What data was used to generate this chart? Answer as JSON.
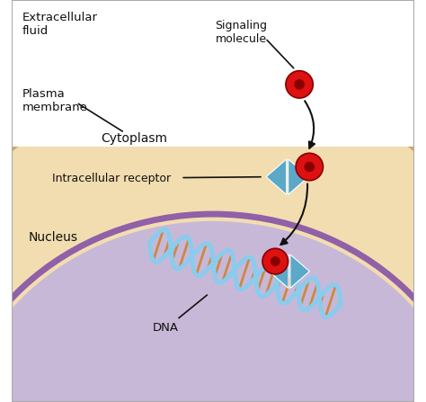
{
  "background_color": "#ffffff",
  "cytoplasm_color": "#f2ddb0",
  "plasma_membrane_fill": "#c8a96e",
  "nucleus_inner_color": "#c8b8d8",
  "nucleus_membrane_color": "#9060a8",
  "signal_molecule_color": "#dd1111",
  "signal_molecule_edge": "#880000",
  "receptor_color": "#5ba8c8",
  "dna_backbone_color": "#88ccee",
  "dna_rung_color": "#cc8844",
  "arrow_color": "#111111",
  "text_color": "#111111",
  "border_color": "#aaaaaa",
  "labels": {
    "extracellular": "Extracellular\nfluid",
    "plasma_membrane": "Plasma\nmembrane",
    "cytoplasm": "Cytoplasm",
    "intracellular_receptor": "Intracellular receptor",
    "nucleus": "Nucleus",
    "dna": "DNA",
    "signaling_molecule": "Signaling\nmolecule"
  },
  "figsize": [
    4.74,
    4.47
  ],
  "dpi": 100
}
